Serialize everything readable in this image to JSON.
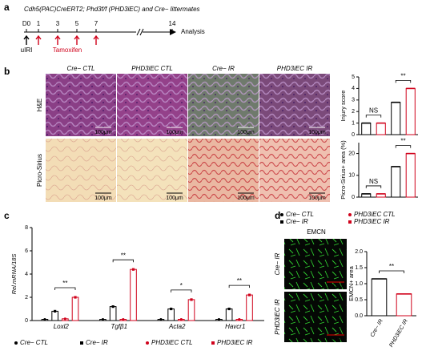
{
  "panels": [
    "a",
    "b",
    "c",
    "d"
  ],
  "header": {
    "title": "Cdh5(PAC)CreERT2; Phd3f/f (PHD3iEC) and Cre− littermates"
  },
  "timeline": {
    "days": [
      "D0",
      "1",
      "3",
      "5",
      "7",
      "14"
    ],
    "events": [
      "uIRI",
      "Tamoxifen"
    ],
    "end": "Analysis"
  },
  "histology": {
    "columns": [
      "Cre− CTL",
      "PHD3iEC CTL",
      "Cre− IR",
      "PHD3iEC IR"
    ],
    "rows": [
      "H&E",
      "Picro-Sirius"
    ],
    "scale_bar": "100μm"
  },
  "emcn": {
    "title": "EMCN",
    "rows": [
      "Cre− IR",
      "PHD3iEC IR"
    ],
    "scale_bar": "100μm"
  },
  "shared_legend": [
    {
      "name": "Cre− CTL",
      "color": "#000000",
      "marker": "circle"
    },
    {
      "name": "PHD3iEC CTL",
      "color": "#d0021b",
      "marker": "circle"
    },
    {
      "name": "Cre− IR",
      "color": "#000000",
      "marker": "square"
    },
    {
      "name": "PHD3iEC IR",
      "color": "#d0021b",
      "marker": "square"
    }
  ],
  "chart_data": [
    {
      "type": "bar",
      "ylabel": "Injury score",
      "categories": [
        null,
        null,
        null,
        null
      ],
      "values": [
        1,
        1,
        2.8,
        4.0
      ],
      "colors": [
        "#000000",
        "#d0021b",
        "#000000",
        "#d0021b"
      ],
      "ylim": [
        0,
        5
      ],
      "yticks": [
        0,
        1,
        2,
        3,
        4,
        5
      ],
      "annotations": [
        "NS",
        "**"
      ]
    },
    {
      "type": "bar",
      "ylabel": "Picro-Sirius+ area (%)",
      "categories": [
        null,
        null,
        null,
        null
      ],
      "values": [
        1.5,
        1.5,
        14,
        20
      ],
      "colors": [
        "#000000",
        "#d0021b",
        "#000000",
        "#d0021b"
      ],
      "ylim": [
        0,
        25
      ],
      "yticks": [
        0,
        10,
        20
      ],
      "annotations": [
        "NS",
        "**"
      ]
    },
    {
      "type": "grouped-bar",
      "ylabel": "Rel.mRNA/18S",
      "categories": [
        "Loxl2",
        "Tgfβ1",
        "Acta2",
        "Havcr1"
      ],
      "series": [
        {
          "name": "Cre− CTL",
          "color": "#000000",
          "marker": "circle",
          "values": [
            0.1,
            0.1,
            0.1,
            0.1
          ]
        },
        {
          "name": "Cre− IR",
          "color": "#000000",
          "marker": "square",
          "values": [
            0.8,
            1.2,
            1.0,
            1.0
          ]
        },
        {
          "name": "PHD3iEC CTL",
          "color": "#d0021b",
          "marker": "circle",
          "values": [
            0.15,
            0.1,
            0.1,
            0.1
          ]
        },
        {
          "name": "PHD3iEC IR",
          "color": "#d0021b",
          "marker": "square",
          "values": [
            2.0,
            4.4,
            1.8,
            2.2
          ]
        }
      ],
      "ylim": [
        0,
        8
      ],
      "yticks": [
        0,
        2,
        4,
        6,
        8
      ],
      "annotations": [
        "**",
        "**",
        "*",
        "**"
      ]
    },
    {
      "type": "bar",
      "ylabel": "EMCN+ area",
      "categories": [
        "Cre− IR",
        "PHD3iEC IR"
      ],
      "values": [
        1.15,
        0.68
      ],
      "colors": [
        "#000000",
        "#d0021b"
      ],
      "ylim": [
        0,
        2
      ],
      "yticks": [
        {
          "value": 0,
          "label": "0.0"
        },
        0.5,
        {
          "value": 1,
          "label": "1.0"
        },
        1.5,
        {
          "value": 2,
          "label": "2.0"
        }
      ],
      "annotations": [
        "**"
      ]
    }
  ]
}
